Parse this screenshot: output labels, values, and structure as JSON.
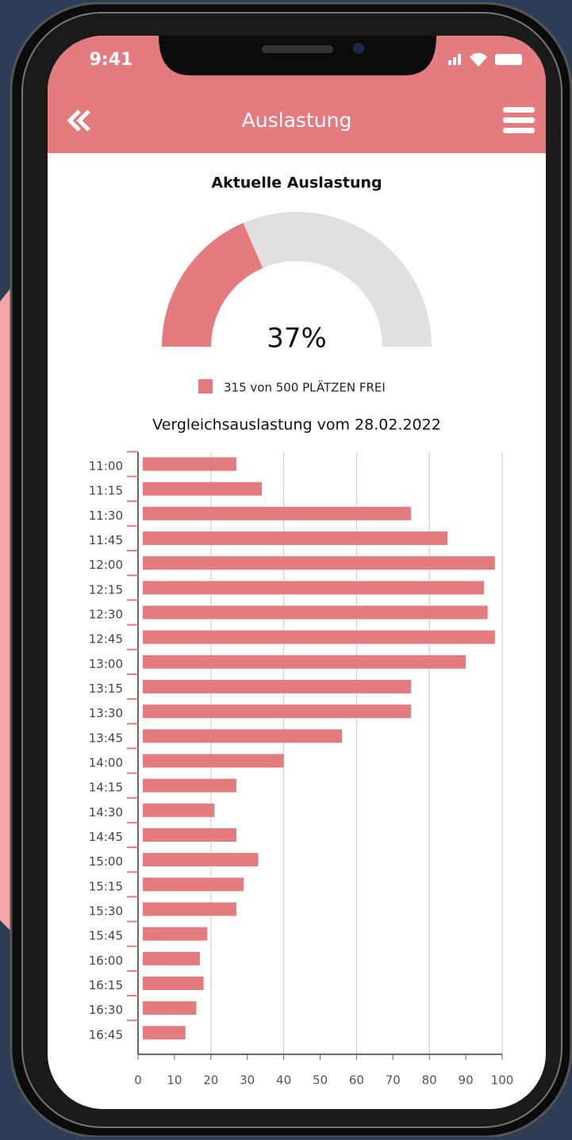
{
  "status_bar": {
    "time": "9:41"
  },
  "header": {
    "title": "Auslastung"
  },
  "chart_data": [
    {
      "type": "gauge",
      "title": "Aktuelle Auslastung",
      "values": [
        37
      ],
      "value_labels": [
        "37%"
      ],
      "ylim": [
        0,
        100
      ],
      "color": "#e47b7e",
      "track_color": "#e0e0e0",
      "legend": "315 von 500 PLÄTZEN FREI"
    },
    {
      "type": "hbar",
      "title": "Vergleichsauslastung vom 28.02.2022",
      "categories": [
        "11:00",
        "11:15",
        "11:30",
        "11:45",
        "12:00",
        "12:15",
        "12:30",
        "12:45",
        "13:00",
        "13:15",
        "13:30",
        "13:45",
        "14:00",
        "14:15",
        "14:30",
        "14:45",
        "15:00",
        "15:15",
        "15:30",
        "15:45",
        "16:00",
        "16:15",
        "16:30",
        "16:45"
      ],
      "values": [
        27,
        34,
        75,
        85,
        98,
        95,
        96,
        98,
        90,
        75,
        75,
        56,
        40,
        27,
        21,
        27,
        33,
        29,
        27,
        19,
        17,
        18,
        16,
        13
      ],
      "color": "#e47b7e",
      "xlim": [
        0,
        100
      ],
      "xticks": [
        0,
        10,
        20,
        30,
        40,
        50,
        60,
        70,
        80,
        90,
        100
      ],
      "grid": true
    }
  ]
}
